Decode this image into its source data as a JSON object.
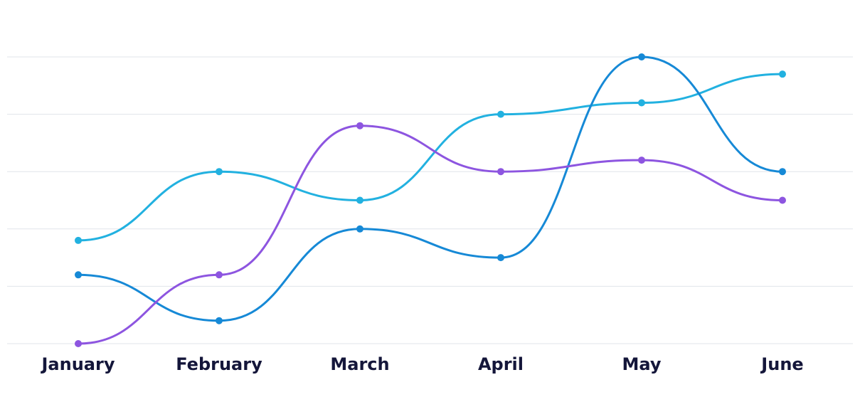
{
  "chart_data": {
    "type": "line",
    "title": "",
    "xlabel": "",
    "ylabel": "",
    "categories": [
      "January",
      "February",
      "March",
      "April",
      "May",
      "June"
    ],
    "ylim": [
      0,
      5
    ],
    "grid": true,
    "legend": "none",
    "curve": "smooth",
    "series": [
      {
        "color": "#22b1e0",
        "values": [
          1.8,
          3.0,
          2.5,
          4.0,
          4.2,
          4.7
        ]
      },
      {
        "color": "#1689d6",
        "values": [
          1.2,
          0.4,
          2.0,
          1.5,
          5.0,
          3.0
        ]
      },
      {
        "color": "#8d55e0",
        "values": [
          0.0,
          1.2,
          3.8,
          3.0,
          3.2,
          2.5
        ]
      }
    ]
  }
}
